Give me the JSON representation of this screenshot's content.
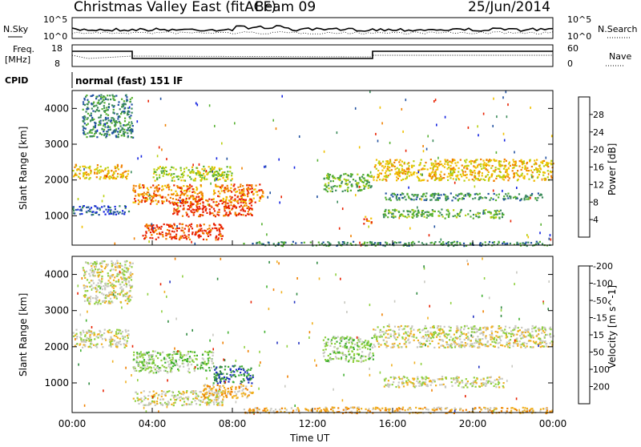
{
  "header": {
    "title": "Christmas Valley East (fitACF)",
    "beam": "Beam 09",
    "date": "25/Jun/2014"
  },
  "noise_panel": {
    "left_label": "N.Sky",
    "left_ticks": [
      "10^5",
      "10^0"
    ],
    "right_ticks": [
      "10^5",
      "10^0"
    ],
    "right_label": "N.Search"
  },
  "freq_panel": {
    "left_label_1": "Freq.",
    "left_label_2": "[MHz]",
    "left_ticks": [
      "18",
      "8"
    ],
    "right_ticks": [
      "60",
      "0"
    ],
    "right_label": "Nave"
  },
  "cpid": {
    "label": "CPID",
    "mode": "normal (fast) 151 lF"
  },
  "chart_data": [
    {
      "type": "heatmap",
      "name": "power",
      "ylabel": "Slant Range [km]",
      "ylim": [
        180,
        4500
      ],
      "yticks": [
        "1000",
        "2000",
        "3000",
        "4000"
      ],
      "colorbar_label": "Power [dB]",
      "colorbar_ticks": [
        "4",
        "8",
        "12",
        "16",
        "20",
        "24",
        "28"
      ],
      "colors": [
        "#1020e0",
        "#2050a0",
        "#3a8a5a",
        "#55b030",
        "#b8d010",
        "#f0c000",
        "#f08000",
        "#e82000"
      ],
      "xlim_hours": [
        0,
        24
      ],
      "regions": [
        {
          "t": [
            0.0,
            2.8
          ],
          "r": [
            2050,
            2450
          ],
          "level": 5
        },
        {
          "t": [
            0.0,
            2.8
          ],
          "r": [
            1050,
            1300
          ],
          "level": 1
        },
        {
          "t": [
            0.5,
            3.0
          ],
          "r": [
            3200,
            4400
          ],
          "level": 2
        },
        {
          "t": [
            3.0,
            6.5
          ],
          "r": [
            1350,
            1900
          ],
          "level": 6
        },
        {
          "t": [
            3.5,
            7.5
          ],
          "r": [
            350,
            800
          ],
          "level": 7
        },
        {
          "t": [
            5.0,
            9.0
          ],
          "r": [
            1000,
            1500
          ],
          "level": 7
        },
        {
          "t": [
            7.0,
            9.5
          ],
          "r": [
            1400,
            1900
          ],
          "level": 6
        },
        {
          "t": [
            4.0,
            8.0
          ],
          "r": [
            2000,
            2400
          ],
          "level": 4
        },
        {
          "t": [
            8.5,
            24.0
          ],
          "r": [
            180,
            300
          ],
          "level": 2
        },
        {
          "t": [
            12.5,
            15.0
          ],
          "r": [
            1700,
            2200
          ],
          "level": 3
        },
        {
          "t": [
            14.5,
            15.0
          ],
          "r": [
            800,
            1000
          ],
          "level": 6
        },
        {
          "t": [
            15.0,
            24.0
          ],
          "r": [
            2000,
            2600
          ],
          "level": 5
        },
        {
          "t": [
            15.5,
            21.5
          ],
          "r": [
            950,
            1200
          ],
          "level": 3
        },
        {
          "t": [
            15.5,
            23.5
          ],
          "r": [
            1450,
            1650
          ],
          "level": 2
        }
      ]
    },
    {
      "type": "heatmap",
      "name": "velocity",
      "ylabel": "Slant Range [km]",
      "ylim": [
        180,
        4500
      ],
      "yticks": [
        "1000",
        "2000",
        "3000",
        "4000"
      ],
      "colorbar_label": "Velocity [m s^-1]",
      "colorbar_ticks": [
        "200",
        "100",
        "50",
        "15",
        "-15",
        "-50",
        "-100",
        "-200"
      ],
      "colors": [
        "#2030c0",
        "#2f8a40",
        "#40b030",
        "#90d040",
        "#c8c8c0",
        "#f0b020",
        "#f08000",
        "#e82000"
      ],
      "xlim_hours": [
        0,
        24
      ],
      "xticks": [
        "00:00",
        "04:00",
        "08:00",
        "12:00",
        "16:00",
        "20:00",
        "00:00"
      ],
      "xlabel": "Time UT",
      "regions": [
        {
          "t": [
            0.0,
            2.8
          ],
          "r": [
            2000,
            2500
          ],
          "level": 4
        },
        {
          "t": [
            0.5,
            3.0
          ],
          "r": [
            3200,
            4400
          ],
          "level": 4
        },
        {
          "t": [
            3.0,
            7.0
          ],
          "r": [
            1300,
            1900
          ],
          "level": 3
        },
        {
          "t": [
            3.0,
            7.5
          ],
          "r": [
            400,
            800
          ],
          "level": 4
        },
        {
          "t": [
            7.0,
            9.0
          ],
          "r": [
            1000,
            1500
          ],
          "level": 1
        },
        {
          "t": [
            6.5,
            9.0
          ],
          "r": [
            600,
            1000
          ],
          "level": 5
        },
        {
          "t": [
            8.5,
            24.0
          ],
          "r": [
            180,
            350
          ],
          "level": 5
        },
        {
          "t": [
            12.5,
            15.0
          ],
          "r": [
            1600,
            2300
          ],
          "level": 3
        },
        {
          "t": [
            15.0,
            24.0
          ],
          "r": [
            2000,
            2600
          ],
          "level": 4
        },
        {
          "t": [
            15.5,
            21.5
          ],
          "r": [
            900,
            1200
          ],
          "level": 4
        }
      ]
    }
  ]
}
